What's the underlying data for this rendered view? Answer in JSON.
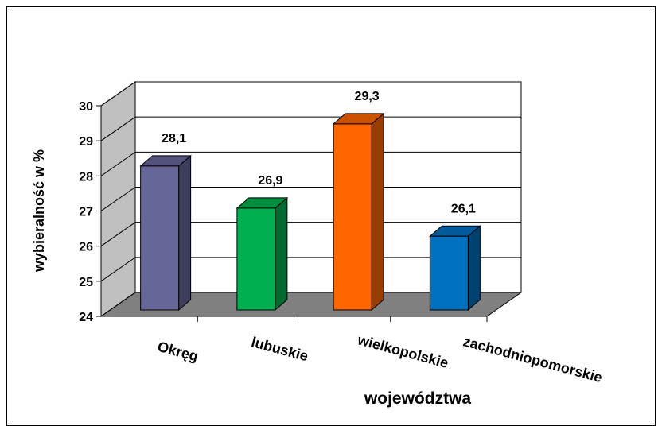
{
  "chart_data": {
    "type": "bar3d",
    "categories": [
      "Okręg",
      "lubuskie",
      "wielkopolskie",
      "zachodniopomorskie"
    ],
    "values": [
      28.1,
      26.9,
      29.3,
      26.1
    ],
    "value_labels": [
      "28,1",
      "26,9",
      "29,3",
      "26,1"
    ],
    "colors": [
      "#666699",
      "#00b050",
      "#ff6600",
      "#0070c0"
    ],
    "ylim": [
      24,
      30
    ],
    "yticks": [
      24,
      25,
      26,
      27,
      28,
      29,
      30
    ],
    "grid": true,
    "y_label": "wybieralność w %",
    "x_label": "województwa"
  }
}
